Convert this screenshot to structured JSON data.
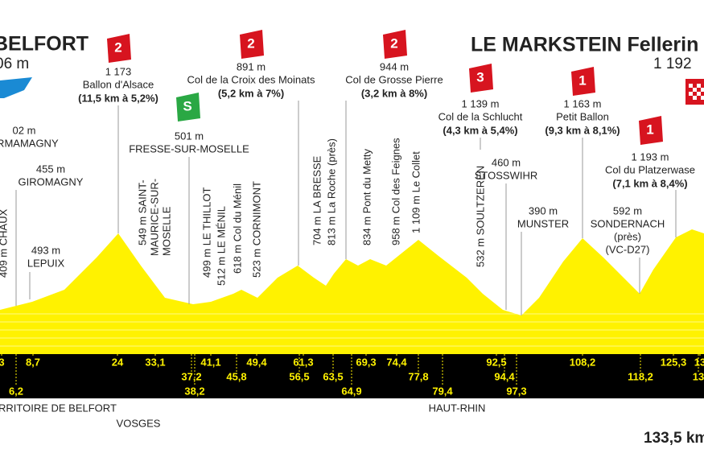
{
  "header": {
    "start": {
      "name": "BELFORT",
      "altitude": "06 m"
    },
    "finish": {
      "name": "LE MARKSTEIN Fellerin",
      "altitude": "1 192"
    }
  },
  "climbs": [
    {
      "category": "2",
      "altitude": "1 173",
      "name": "Ballon d'Alsace",
      "detail": "(11,5 km à 5,2%)"
    },
    {
      "category": "2",
      "altitude": "891 m",
      "name": "Col de la Croix des Moinats",
      "detail": "(5,2 km à 7%)"
    },
    {
      "category": "2",
      "altitude": "944 m",
      "name": "Col de Grosse Pierre",
      "detail": "(3,2 km à 8%)"
    },
    {
      "category": "3",
      "altitude": "1 139 m",
      "name": "Col de la Schlucht",
      "detail": "(4,3 km à 5,4%)"
    },
    {
      "category": "1",
      "altitude": "1 163 m",
      "name": "Petit Ballon",
      "detail": "(9,3 km à 8,1%)"
    },
    {
      "category": "1",
      "altitude": "1 193 m",
      "name": "Col du Platzerwase",
      "detail": "(7,1 km à 8,4%)"
    }
  ],
  "sprint": {
    "category": "S",
    "altitude": "501 m",
    "name": "FRESSE-SUR-MOSELLE"
  },
  "waypoints": [
    {
      "altitude": "02 m",
      "name": "ERMAMAGNY"
    },
    {
      "altitude": "455 m",
      "name": "GIROMAGNY"
    },
    {
      "altitude": "493 m",
      "name": "LEPUIX"
    },
    {
      "altitude": "460 m",
      "name": "STOSSWIHR"
    },
    {
      "altitude": "390 m",
      "name": "MUNSTER"
    },
    {
      "altitude": "592 m",
      "name": "SONDERNACH",
      "extra": [
        "(près)",
        "(VC-D27)"
      ]
    }
  ],
  "vertical_labels": [
    "409 m CHAUX",
    "499 m LE THILLOT",
    "512 m LE MÉNIL",
    "618 m Col du Ménil",
    "523 m CORNIMONT",
    "704 m LA BRESSE",
    "813 m La Roche (près)",
    "834 m Pont du Metty",
    "958 m Col des Feignes",
    "1 109 m Le Collet",
    "532 m SOULTZEREN"
  ],
  "saint_maurice": [
    "549 m SAINT-",
    "MAURICE-SUR-",
    "MOSELLE"
  ],
  "km": [
    "3",
    "8,7",
    "24",
    "33,1",
    "41,1",
    "49,4",
    "61,3",
    "69,3",
    "74,4",
    "92,5",
    "108,2",
    "125,3",
    "13",
    "37,2",
    "45,8",
    "56,5",
    "63,5",
    "77,8",
    "94,4",
    "118,2",
    "13",
    "6,2",
    "38,2",
    "64,9",
    "79,4",
    "97,3"
  ],
  "departments": [
    "RRITOIRE DE BELFORT",
    "VOSGES",
    "HAUT-RHIN"
  ],
  "distance": "133,5 km"
}
